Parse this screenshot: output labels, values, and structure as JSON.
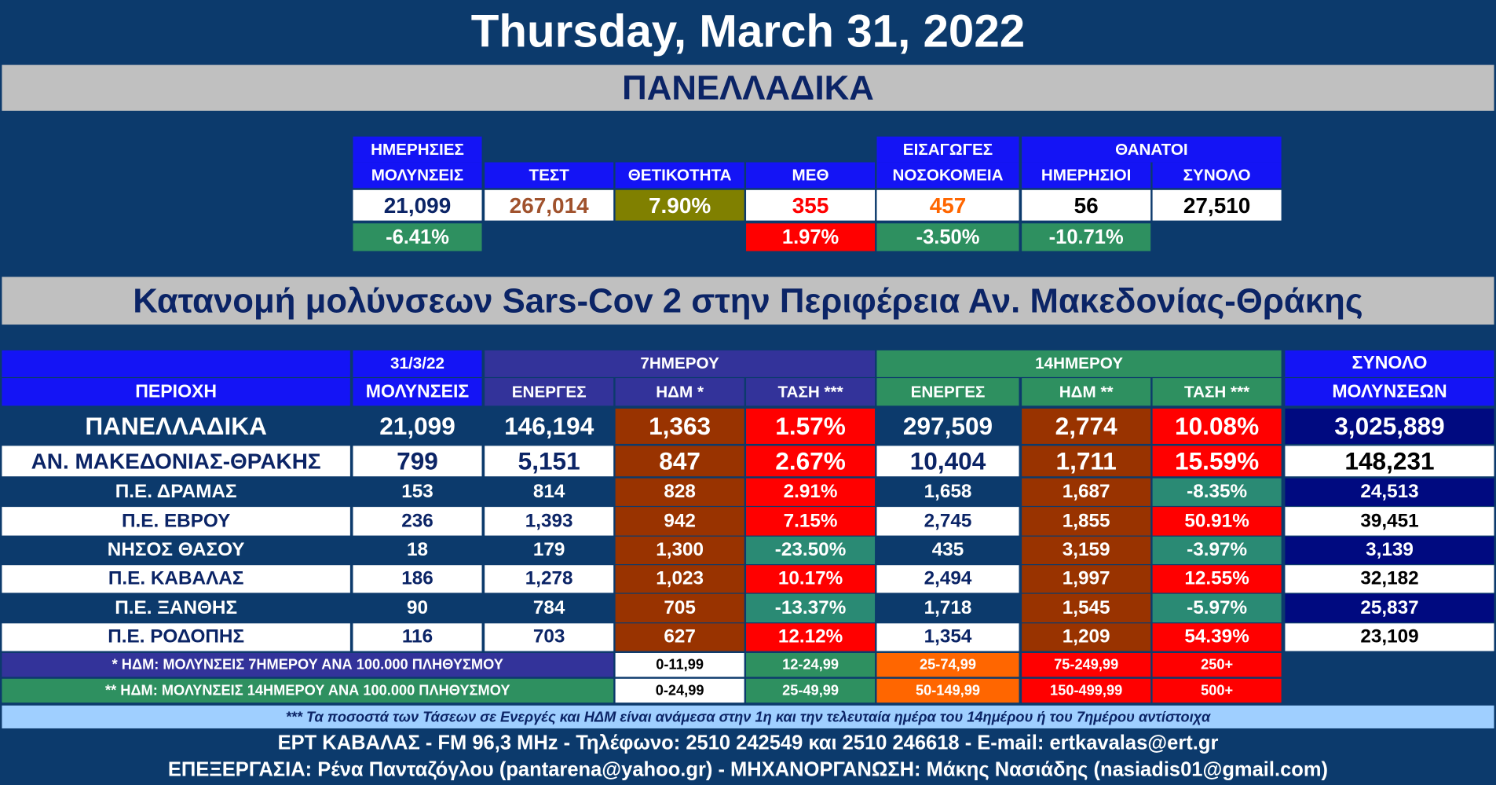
{
  "header": {
    "date": "Thursday, March 31, 2022",
    "national_title": "ΠΑΝΕΛΛΑΔΙΚΑ"
  },
  "national": {
    "deaths_group": "ΘΑΝΑΤΟΙ",
    "columns": [
      {
        "header": [
          "ΗΜΕΡΗΣΙΕΣ",
          "ΜΟΛΥΝΣΕΙΣ"
        ],
        "value": "21,099",
        "change": "-6.41%"
      },
      {
        "header": [
          "ΤΕΣΤ"
        ],
        "value": "267,014"
      },
      {
        "header": [
          "ΘΕΤΙΚΟΤΗΤΑ"
        ],
        "value": "7.90%"
      },
      {
        "header": [
          "ΜΕΘ"
        ],
        "value": "355",
        "change": "1.97%"
      },
      {
        "header": [
          "ΕΙΣΑΓΩΓΕΣ",
          "ΝΟΣΟΚΟΜΕΙΑ"
        ],
        "value": "457",
        "change": "-3.50%"
      },
      {
        "header": [
          "ΗΜΕΡΗΣΙΟΙ"
        ],
        "value": "56",
        "change": "-10.71%"
      },
      {
        "header": [
          "ΣΥΝΟΛΟ"
        ],
        "value": "27,510"
      }
    ]
  },
  "region_title": "Κατανομή μολύνσεων Sars-Cov 2 στην Περιφέρεια Αν. Μακεδονίας-Θράκης",
  "table": {
    "group_headers": {
      "date": "31/3/22",
      "week": "7ΗΜΕΡΟΥ",
      "fortnight": "14ΗΜΕΡΟΥ",
      "total": "ΣΥΝΟΛΟ"
    },
    "columns": [
      "ΠΕΡΙΟΧΗ",
      "ΜΟΛΥΝΣΕΙΣ",
      "ΕΝΕΡΓΕΣ",
      "ΗΔΜ *",
      "ΤΑΣΗ ***",
      "ΕΝΕΡΓΕΣ",
      "ΗΔΜ **",
      "ΤΑΣΗ ***",
      "ΜΟΛΥΝΣΕΩΝ"
    ],
    "rows": [
      [
        "ΠΑΝΕΛΛΑΔΙΚΑ",
        "21,099",
        "146,194",
        "1,363",
        "1.57%",
        "297,509",
        "2,774",
        "10.08%",
        "3,025,889"
      ],
      [
        "ΑΝ. ΜΑΚΕΔΟΝΙΑΣ-ΘΡΑΚΗΣ",
        "799",
        "5,151",
        "847",
        "2.67%",
        "10,404",
        "1,711",
        "15.59%",
        "148,231"
      ],
      [
        "Π.Ε. ΔΡΑΜΑΣ",
        "153",
        "814",
        "828",
        "2.91%",
        "1,658",
        "1,687",
        "-8.35%",
        "24,513"
      ],
      [
        "Π.Ε. ΕΒΡΟΥ",
        "236",
        "1,393",
        "942",
        "7.15%",
        "2,745",
        "1,855",
        "50.91%",
        "39,451"
      ],
      [
        "ΝΗΣΟΣ ΘΑΣΟΥ",
        "18",
        "179",
        "1,300",
        "-23.50%",
        "435",
        "3,159",
        "-3.97%",
        "3,139"
      ],
      [
        "Π.Ε. ΚΑΒΑΛΑΣ",
        "186",
        "1,278",
        "1,023",
        "10.17%",
        "2,494",
        "1,997",
        "12.55%",
        "32,182"
      ],
      [
        "Π.Ε. ΞΑΝΘΗΣ",
        "90",
        "784",
        "705",
        "-13.37%",
        "1,718",
        "1,545",
        "-5.97%",
        "25,837"
      ],
      [
        "Π.Ε. ΡΟΔΟΠΗΣ",
        "116",
        "703",
        "627",
        "12.12%",
        "1,354",
        "1,209",
        "54.39%",
        "23,109"
      ]
    ]
  },
  "legend": [
    {
      "label": "* ΗΔΜ: ΜΟΛΥΝΣΕΙΣ 7ΗΜΕΡΟΥ ΑΝΑ 100.000 ΠΛΗΘΥΣΜΟΥ",
      "ranges": [
        "0-11,99",
        "12-24,99",
        "25-74,99",
        "75-249,99",
        "250+"
      ]
    },
    {
      "label": "** ΗΔΜ: ΜΟΛΥΝΣΕΙΣ 14ΗΜΕΡΟΥ ΑΝΑ 100.000 ΠΛΗΘΥΣΜΟΥ",
      "ranges": [
        "0-24,99",
        "25-49,99",
        "50-149,99",
        "150-499,99",
        "500+"
      ]
    }
  ],
  "footnote": "*** Τα ποσοστά των Τάσεων σε Ενεργές και ΗΔΜ είναι ανάμεσα στην 1η και την τελευταία ημέρα του 14ημέρου ή του 7ημέρου αντίστοιχα",
  "footer": [
    "ΕΡΤ ΚΑΒΑΛΑΣ - FM 96,3 MHz - Τηλέφωνο:  2510 242549 και 2510 246618 - E-mail: ertkavalas@ert.gr",
    "ΕΠΕΞΕΡΓΑΣΙΑ: Ρένα Πανταζόγλου (pantarena@yahoo.gr) - ΜΗΧΑΝΟΡΓΑΝΩΣΗ: Μάκης Νασιάδης (nasiadis01@gmail.com)"
  ]
}
